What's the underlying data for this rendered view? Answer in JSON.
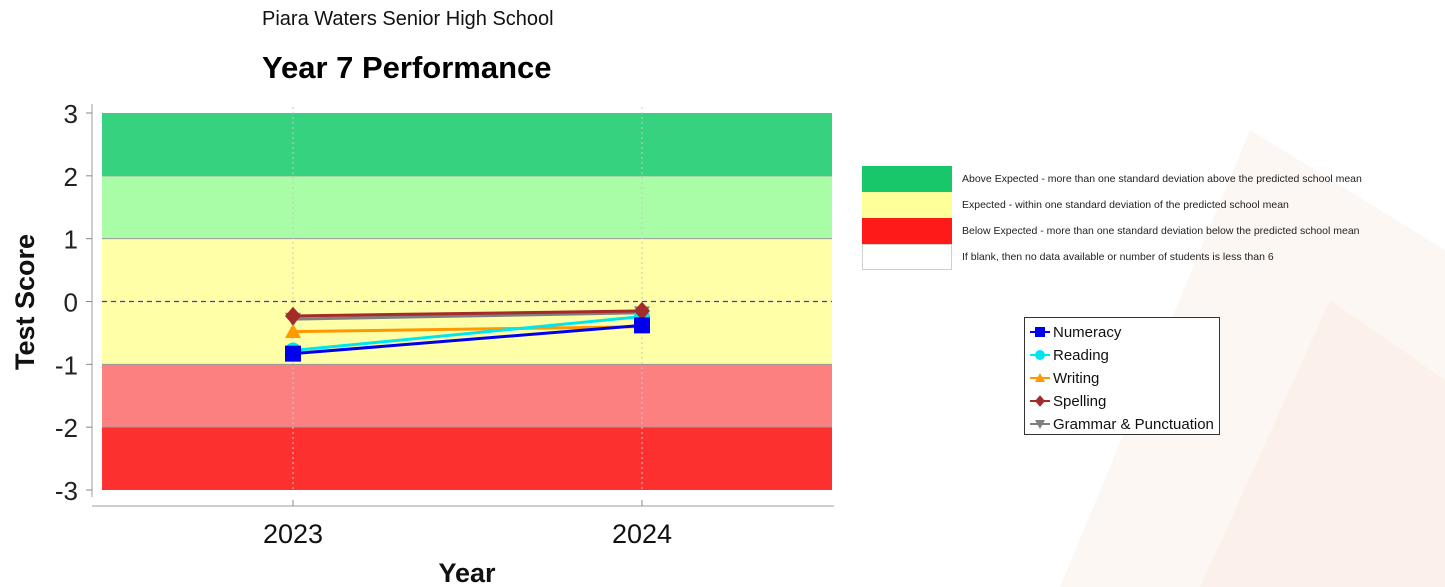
{
  "header": {
    "school_name": "Piara Waters Senior High School"
  },
  "chart_data": {
    "type": "line",
    "title": "Year 7 Performance",
    "xlabel": "Year",
    "ylabel": "Test Score",
    "categories": [
      "2023",
      "2024"
    ],
    "ylim": [
      -3,
      3
    ],
    "yticks": [
      3,
      2,
      1,
      0,
      -1,
      -2,
      -3
    ],
    "grid": false,
    "reference_line": 0,
    "bands": [
      {
        "from": 2,
        "to": 3,
        "color": "#37d27f"
      },
      {
        "from": 1,
        "to": 2,
        "color": "#a9fda7"
      },
      {
        "from": -1,
        "to": 1,
        "color": "#ffffa8"
      },
      {
        "from": -2,
        "to": -1,
        "color": "#fd8080"
      },
      {
        "from": -3,
        "to": -2,
        "color": "#fd3030"
      }
    ],
    "series": [
      {
        "name": "Grammar & Punctuation",
        "values": [
          -0.28,
          -0.18
        ],
        "color": "#808080",
        "marker": "triangle-down"
      },
      {
        "name": "Writing",
        "values": [
          -0.48,
          -0.4
        ],
        "color": "#ff9900",
        "marker": "triangle-up"
      },
      {
        "name": "Reading",
        "values": [
          -0.78,
          -0.24
        ],
        "color": "#00e5ee",
        "marker": "circle"
      },
      {
        "name": "Spelling",
        "values": [
          -0.23,
          -0.15
        ],
        "color": "#a52a2a",
        "marker": "diamond"
      },
      {
        "name": "Numeracy",
        "values": [
          -0.83,
          -0.38
        ],
        "color": "#0000ee",
        "marker": "square"
      }
    ],
    "legend_order": [
      "Numeracy",
      "Reading",
      "Writing",
      "Spelling",
      "Grammar & Punctuation"
    ],
    "legend_position": "right"
  },
  "band_legend": [
    {
      "color": "#18c76a",
      "text": "Above Expected - more than one standard deviation above the predicted school mean"
    },
    {
      "color": "#ffff99",
      "text": "Expected - within one standard deviation of the predicted school mean"
    },
    {
      "color": "#ff1a1a",
      "text": "Below Expected - more than one standard deviation below the predicted school mean"
    },
    {
      "color": "#ffffff",
      "text": "If blank, then no data available or number of students is less than 6"
    }
  ]
}
